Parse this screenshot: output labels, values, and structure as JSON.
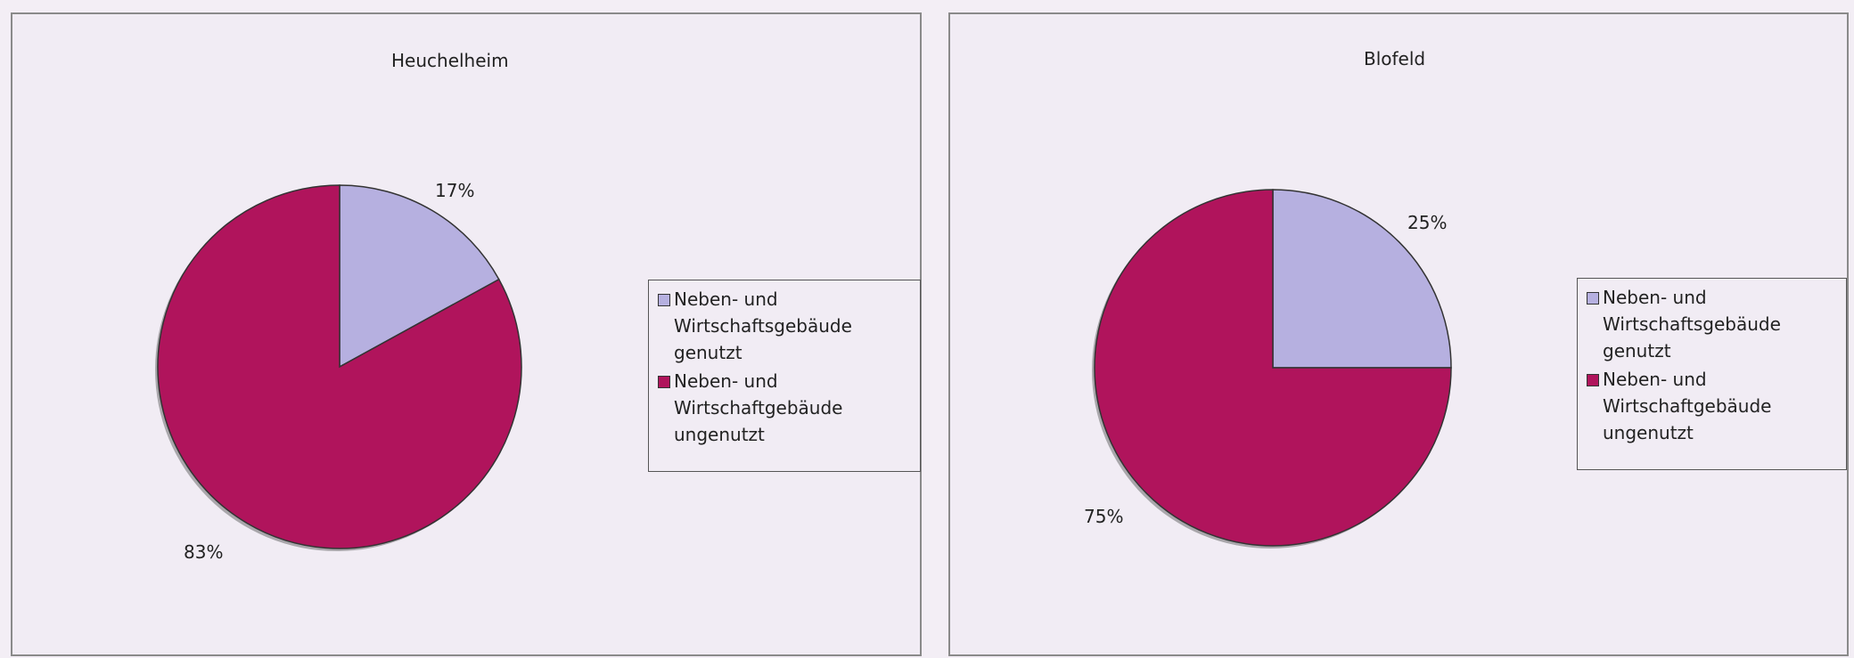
{
  "chart_data": [
    {
      "type": "pie",
      "title": "Heuchelheim",
      "categories": [
        "Neben- und\nWirtschaftsgebäude\ngenutzt",
        "Neben- und\nWirtschaftgebäude\nungenutzt"
      ],
      "values": [
        17,
        83
      ],
      "labels": [
        "17%",
        "83%"
      ],
      "colors": [
        "#b6b0e0",
        "#b0145c"
      ],
      "legend": "right"
    },
    {
      "type": "pie",
      "title": "Blofeld",
      "categories": [
        "Neben- und\nWirtschaftsgebäude\ngenutzt",
        "Neben- und\nWirtschaftgebäude\nungenutzt"
      ],
      "values": [
        25,
        75
      ],
      "labels": [
        "25%",
        "75%"
      ],
      "colors": [
        "#b6b0e0",
        "#b0145c"
      ],
      "legend": "right"
    }
  ]
}
